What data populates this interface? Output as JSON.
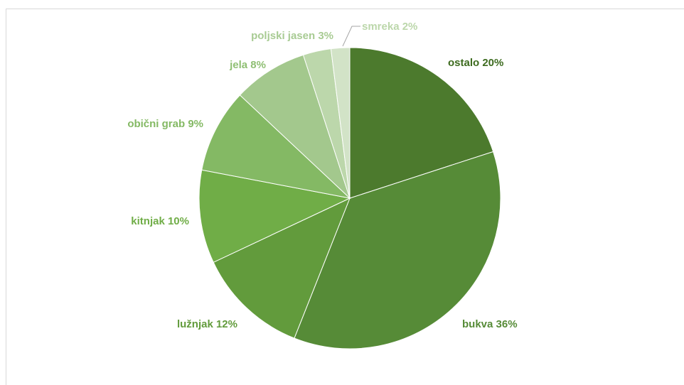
{
  "chart_data": {
    "type": "pie",
    "title": "",
    "start_angle_deg": 0,
    "direction": "clockwise",
    "slices": [
      {
        "label": "ostalo 20%",
        "name": "ostalo",
        "value": 20,
        "color": "#4c7a2d",
        "label_color": "#3d6b1f"
      },
      {
        "label": "bukva 36%",
        "name": "bukva",
        "value": 36,
        "color": "#568b37",
        "label_color": "#568b37"
      },
      {
        "label": "lužnjak 12%",
        "name": "lužnjak",
        "value": 12,
        "color": "#629b3c",
        "label_color": "#629b3c"
      },
      {
        "label": "kitnjak 10%",
        "name": "kitnjak",
        "value": 10,
        "color": "#70ad47",
        "label_color": "#70ad47"
      },
      {
        "label": "obični grab 9%",
        "name": "obični grab",
        "value": 9,
        "color": "#84b964",
        "label_color": "#84b964"
      },
      {
        "label": "jela 8%",
        "name": "jela",
        "value": 8,
        "color": "#a3c88d",
        "label_color": "#8fbf73"
      },
      {
        "label": "poljski jasen 3%",
        "name": "poljski jasen",
        "value": 3,
        "color": "#bcd7ab",
        "label_color": "#a8cb93"
      },
      {
        "label": "smreka 2%",
        "name": "smreka",
        "value": 2,
        "color": "#d2e3c7",
        "label_color": "#bcd7ab"
      }
    ]
  }
}
